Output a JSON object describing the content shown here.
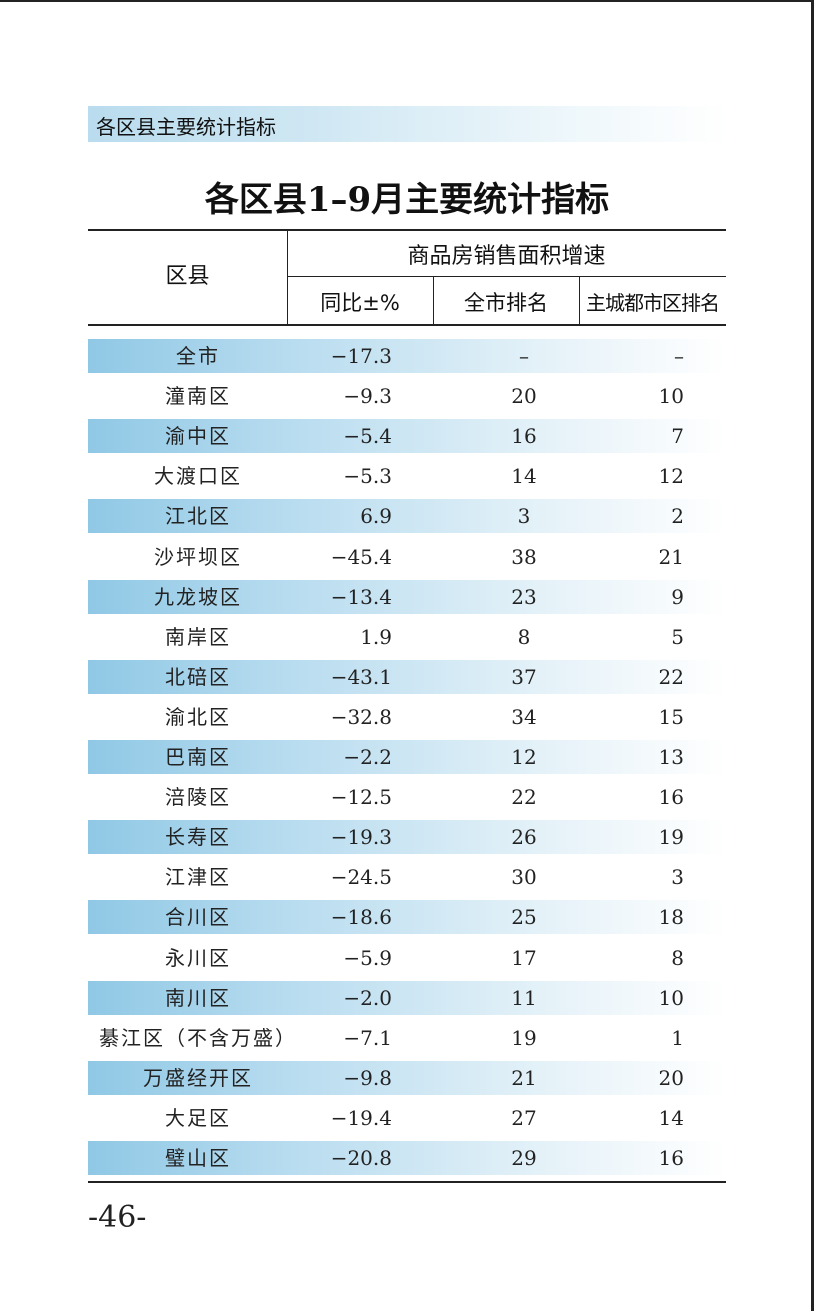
{
  "section_banner": "各区县主要统计指标",
  "title": "各区县1–9月主要统计指标",
  "header": {
    "district": "区县",
    "group": "商品房销售面积增速",
    "yoy": "同比±%",
    "city_rank": "全市排名",
    "main_city_rank": "主城都市区排名"
  },
  "rows": [
    {
      "name": "全市",
      "yoy": "−17.3",
      "city_rank": "–",
      "main_city_rank": "–",
      "shaded": true
    },
    {
      "name": "潼南区",
      "yoy": "−9.3",
      "city_rank": "20",
      "main_city_rank": "10",
      "shaded": false
    },
    {
      "name": "渝中区",
      "yoy": "−5.4",
      "city_rank": "16",
      "main_city_rank": "7",
      "shaded": true
    },
    {
      "name": "大渡口区",
      "yoy": "−5.3",
      "city_rank": "14",
      "main_city_rank": "12",
      "shaded": false
    },
    {
      "name": "江北区",
      "yoy": "6.9",
      "city_rank": "3",
      "main_city_rank": "2",
      "shaded": true
    },
    {
      "name": "沙坪坝区",
      "yoy": "−45.4",
      "city_rank": "38",
      "main_city_rank": "21",
      "shaded": false
    },
    {
      "name": "九龙坡区",
      "yoy": "−13.4",
      "city_rank": "23",
      "main_city_rank": "9",
      "shaded": true
    },
    {
      "name": "南岸区",
      "yoy": "1.9",
      "city_rank": "8",
      "main_city_rank": "5",
      "shaded": false
    },
    {
      "name": "北碚区",
      "yoy": "−43.1",
      "city_rank": "37",
      "main_city_rank": "22",
      "shaded": true
    },
    {
      "name": "渝北区",
      "yoy": "−32.8",
      "city_rank": "34",
      "main_city_rank": "15",
      "shaded": false
    },
    {
      "name": "巴南区",
      "yoy": "−2.2",
      "city_rank": "12",
      "main_city_rank": "13",
      "shaded": true
    },
    {
      "name": "涪陵区",
      "yoy": "−12.5",
      "city_rank": "22",
      "main_city_rank": "16",
      "shaded": false
    },
    {
      "name": "长寿区",
      "yoy": "−19.3",
      "city_rank": "26",
      "main_city_rank": "19",
      "shaded": true
    },
    {
      "name": "江津区",
      "yoy": "−24.5",
      "city_rank": "30",
      "main_city_rank": "3",
      "shaded": false
    },
    {
      "name": "合川区",
      "yoy": "−18.6",
      "city_rank": "25",
      "main_city_rank": "18",
      "shaded": true
    },
    {
      "name": "永川区",
      "yoy": "−5.9",
      "city_rank": "17",
      "main_city_rank": "8",
      "shaded": false
    },
    {
      "name": "南川区",
      "yoy": "−2.0",
      "city_rank": "11",
      "main_city_rank": "10",
      "shaded": true
    },
    {
      "name": "綦江区（不含万盛）",
      "yoy": "−7.1",
      "city_rank": "19",
      "main_city_rank": "1",
      "shaded": false
    },
    {
      "name": "万盛经开区",
      "yoy": "−9.8",
      "city_rank": "21",
      "main_city_rank": "20",
      "shaded": true
    },
    {
      "name": "大足区",
      "yoy": "−19.4",
      "city_rank": "27",
      "main_city_rank": "14",
      "shaded": false
    },
    {
      "name": "璧山区",
      "yoy": "−20.8",
      "city_rank": "29",
      "main_city_rank": "16",
      "shaded": true
    }
  ],
  "page_number": "-46-"
}
